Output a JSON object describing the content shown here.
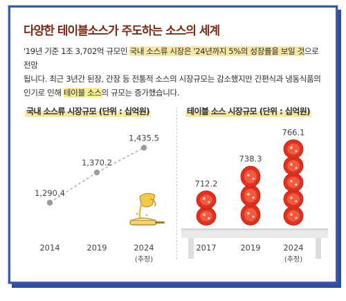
{
  "headline": "다양한 테이블소스가 주도하는 소스의 세계",
  "paragraph": {
    "line1_a": "'19년 기준 1조 3,702억 규모인 ",
    "line1_hl": "국내 소스류 시장은 '24년까지 5%의 성장률을 보일 것",
    "line1_b": "으로  전망",
    "line2": "됩니다. 최근 3년간 된장, 간장 등 전통적 소스의 시장규모는 감소했지만 간편식과 냉동식품의",
    "line3_a": "인기로 인해 ",
    "line3_hl": "테이블 소스",
    "line3_b": "의 규모는 증가했습니다."
  },
  "chart_data": [
    {
      "type": "line",
      "title": "국내 소스류 시장규모 (단위 : 십억원)",
      "categories": [
        "2014",
        "2019",
        "2024"
      ],
      "category_notes": [
        "",
        "",
        "(추정)"
      ],
      "values": [
        1290.4,
        1370.2,
        1435.5
      ],
      "value_labels": [
        "1,290.4",
        "1,370.2",
        "1,435.5"
      ],
      "ylim": [
        1250,
        1460
      ],
      "line_style": "dashed",
      "grid": false,
      "colors": {
        "line": "#b5b5b5",
        "point": "#9a9a9a",
        "text": "#444444"
      }
    },
    {
      "type": "bar",
      "title": "테이블 소스 시장규모 (단위 : 십억원)",
      "categories": [
        "2017",
        "2019",
        "2024"
      ],
      "category_notes": [
        "",
        "",
        "(추정)"
      ],
      "values": [
        712.2,
        738.3,
        766.1
      ],
      "value_labels": [
        "712.2",
        "738.3",
        "766.1"
      ],
      "ylim": [
        700,
        770
      ],
      "grid": false,
      "colors": {
        "tomato": "#e0301f",
        "tomato_light": "#f15a3f",
        "table": "#ececec"
      }
    }
  ]
}
